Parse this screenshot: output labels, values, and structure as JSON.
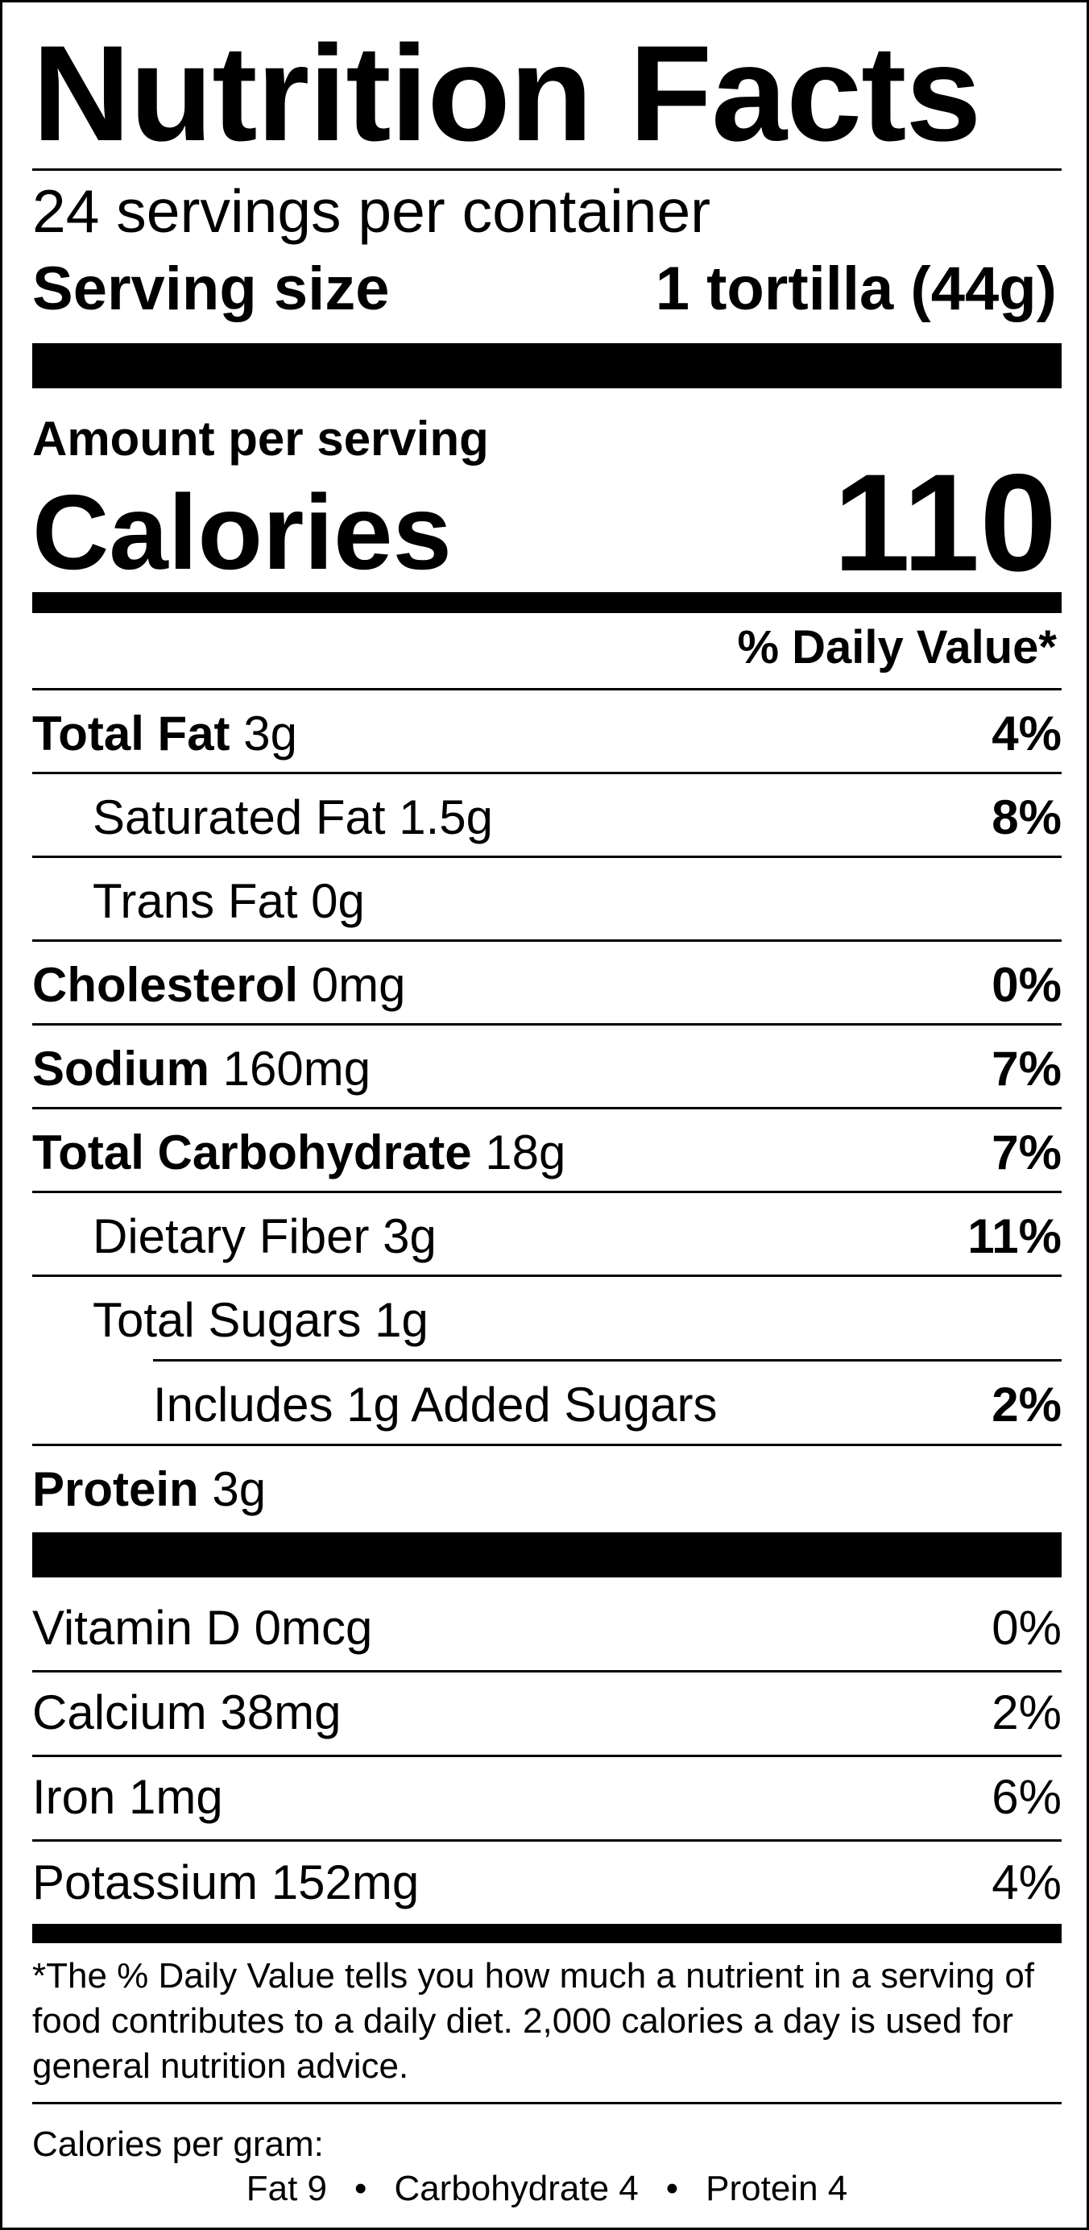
{
  "title": "Nutrition Facts",
  "servings_per_container": "24 servings per container",
  "serving_size": {
    "label": "Serving size",
    "value": "1 tortilla (44g)"
  },
  "amount_per_serving": "Amount per serving",
  "calories": {
    "label": "Calories",
    "value": "110"
  },
  "daily_value_header": "% Daily Value*",
  "nutrients": [
    {
      "name": "Total Fat",
      "amount": "3g",
      "dv": "4%"
    },
    {
      "name": "Saturated Fat 1.5g",
      "amount": "",
      "dv": "8%"
    },
    {
      "name": "Trans Fat 0g",
      "amount": "",
      "dv": ""
    },
    {
      "name": "Cholesterol",
      "amount": "0mg",
      "dv": "0%"
    },
    {
      "name": "Sodium",
      "amount": "160mg",
      "dv": "7%"
    },
    {
      "name": "Total Carbohydrate",
      "amount": "18g",
      "dv": "7%"
    },
    {
      "name": "Dietary Fiber 3g",
      "amount": "",
      "dv": "11%"
    },
    {
      "name": "Total Sugars 1g",
      "amount": "",
      "dv": ""
    },
    {
      "name": "Includes 1g Added Sugars",
      "amount": "",
      "dv": "2%"
    },
    {
      "name": "Protein",
      "amount": "3g",
      "dv": ""
    }
  ],
  "vitamins": [
    {
      "name": "Vitamin D 0mcg",
      "dv": "0%"
    },
    {
      "name": "Calcium 38mg",
      "dv": "2%"
    },
    {
      "name": "Iron 1mg",
      "dv": "6%"
    },
    {
      "name": "Potassium 152mg",
      "dv": "4%"
    }
  ],
  "footnote": "*The % Daily Value tells you how much a nutrient in a serving of food contributes to a daily diet. 2,000 calories a day is used for general nutrition advice.",
  "calories_per_gram": {
    "label": "Calories per gram:",
    "fat": "Fat 9",
    "carbohydrate": "Carbohydrate 4",
    "protein": "Protein 4",
    "separator": "•"
  }
}
